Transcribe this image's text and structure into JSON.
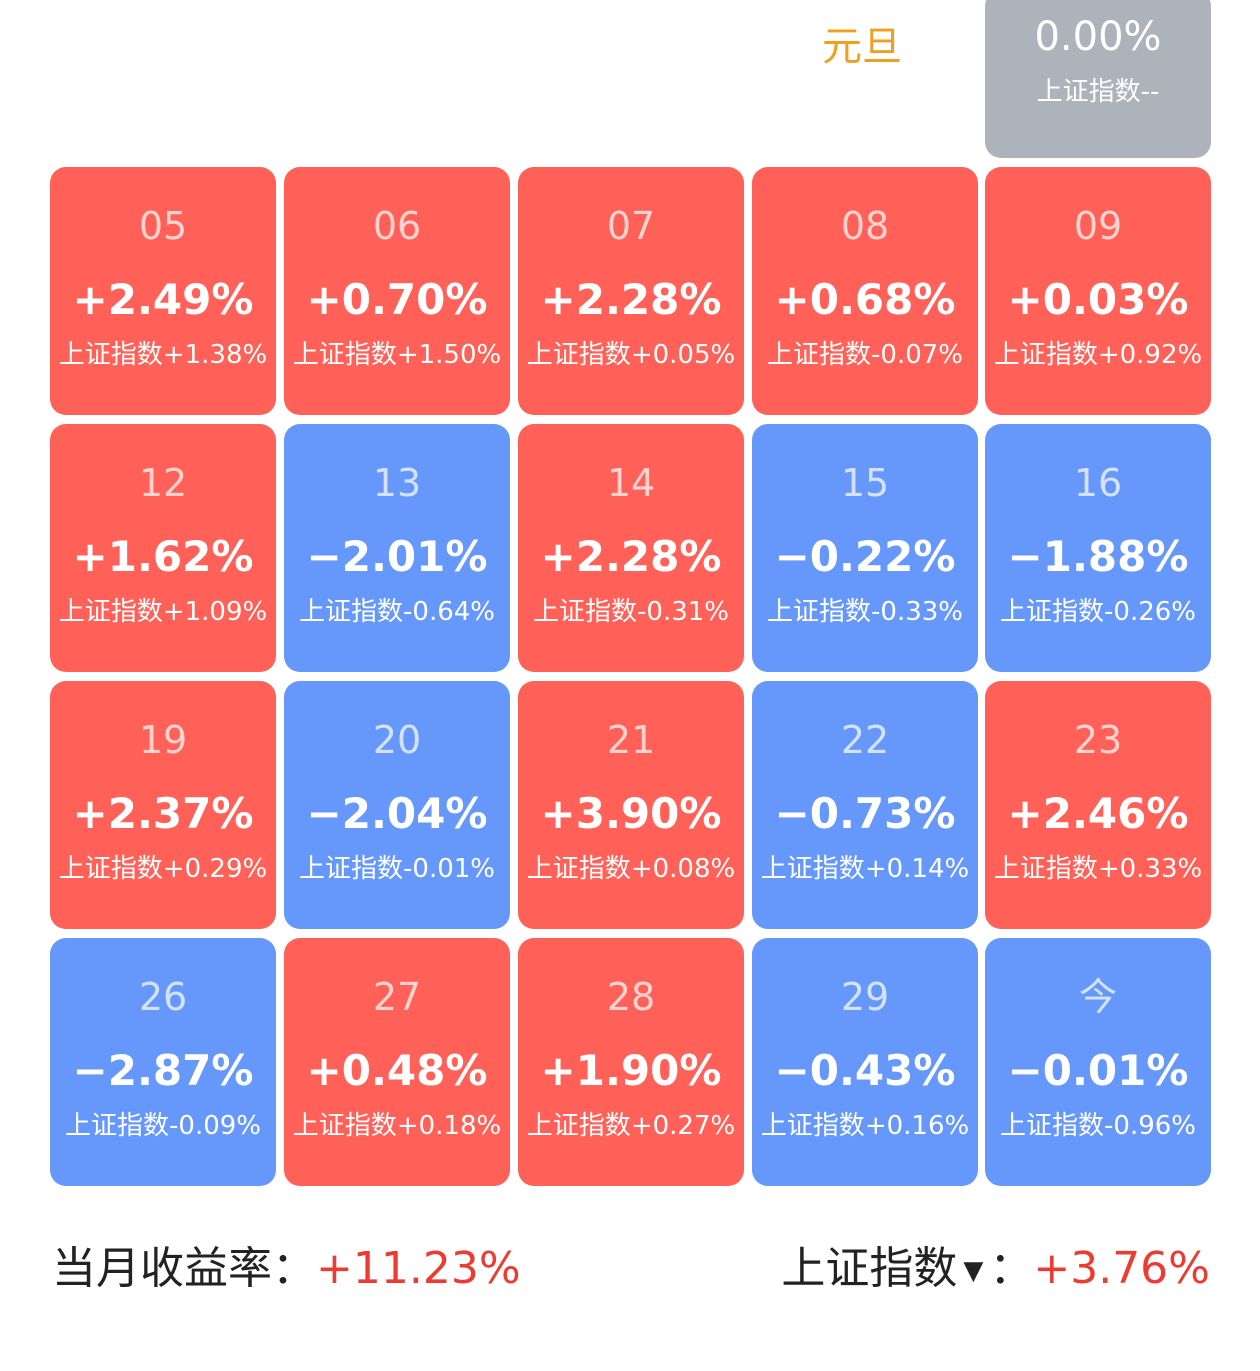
{
  "holiday_label": "元旦",
  "top_cell": {
    "return": "0.00%",
    "index": "上证指数--",
    "status": "flat"
  },
  "index_prefix": "上证指数",
  "rows": [
    [
      {
        "day": "05",
        "return": "+2.49%",
        "index": "+1.38%",
        "status": "up"
      },
      {
        "day": "06",
        "return": "+0.70%",
        "index": "+1.50%",
        "status": "up"
      },
      {
        "day": "07",
        "return": "+2.28%",
        "index": "+0.05%",
        "status": "up"
      },
      {
        "day": "08",
        "return": "+0.68%",
        "index": "-0.07%",
        "status": "up"
      },
      {
        "day": "09",
        "return": "+0.03%",
        "index": "+0.92%",
        "status": "up"
      }
    ],
    [
      {
        "day": "12",
        "return": "+1.62%",
        "index": "+1.09%",
        "status": "up"
      },
      {
        "day": "13",
        "return": "−2.01%",
        "index": "-0.64%",
        "status": "down"
      },
      {
        "day": "14",
        "return": "+2.28%",
        "index": "-0.31%",
        "status": "up"
      },
      {
        "day": "15",
        "return": "−0.22%",
        "index": "-0.33%",
        "status": "down"
      },
      {
        "day": "16",
        "return": "−1.88%",
        "index": "-0.26%",
        "status": "down"
      }
    ],
    [
      {
        "day": "19",
        "return": "+2.37%",
        "index": "+0.29%",
        "status": "up"
      },
      {
        "day": "20",
        "return": "−2.04%",
        "index": "-0.01%",
        "status": "down"
      },
      {
        "day": "21",
        "return": "+3.90%",
        "index": "+0.08%",
        "status": "up"
      },
      {
        "day": "22",
        "return": "−0.73%",
        "index": "+0.14%",
        "status": "down"
      },
      {
        "day": "23",
        "return": "+2.46%",
        "index": "+0.33%",
        "status": "up"
      }
    ],
    [
      {
        "day": "26",
        "return": "−2.87%",
        "index": "-0.09%",
        "status": "down"
      },
      {
        "day": "27",
        "return": "+0.48%",
        "index": "+0.18%",
        "status": "up"
      },
      {
        "day": "28",
        "return": "+1.90%",
        "index": "+0.27%",
        "status": "up"
      },
      {
        "day": "29",
        "return": "−0.43%",
        "index": "+0.16%",
        "status": "down"
      },
      {
        "day": "今",
        "return": "−0.01%",
        "index": "-0.96%",
        "status": "down"
      }
    ]
  ],
  "summary": {
    "monthly_label": "当月收益率：",
    "monthly_value": "+11.23%",
    "index_label": "上证指数",
    "index_colon": "：",
    "index_value": "+3.76%",
    "dropdown_icon": "caret-down-icon"
  },
  "colors": {
    "up": "#ff6158",
    "down": "#6698fb",
    "flat": "#adb2bb",
    "holiday": "#f0a020",
    "positive_text": "#ee3b32"
  }
}
